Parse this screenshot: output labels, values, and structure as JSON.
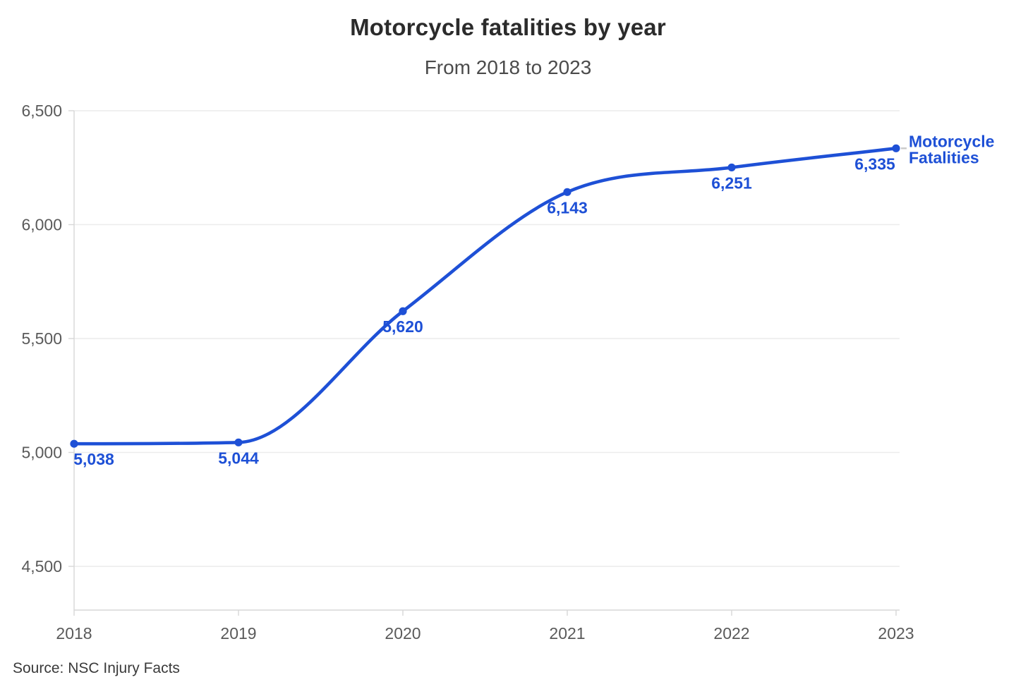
{
  "header": {
    "title": "Motorcycle fatalities by year",
    "subtitle": "From 2018 to 2023"
  },
  "footer": {
    "source": "Source: NSC Injury Facts"
  },
  "chart_data": {
    "type": "line",
    "title": "Motorcycle fatalities by year",
    "subtitle": "From 2018 to 2023",
    "x": [
      2018,
      2019,
      2020,
      2021,
      2022,
      2023
    ],
    "xtick_labels": [
      "2018",
      "2019",
      "2020",
      "2021",
      "2022",
      "2023"
    ],
    "series": [
      {
        "name": "Motorcycle Fatalities",
        "label_lines": [
          "Motorcycle",
          "Fatalities"
        ],
        "values": [
          5038,
          5044,
          5620,
          6143,
          6251,
          6335
        ],
        "data_labels": [
          "5,038",
          "5,044",
          "5,620",
          "6,143",
          "6,251",
          "6,335"
        ],
        "color": "#1e50d6"
      }
    ],
    "xlabel": "",
    "ylabel": "",
    "ylim": [
      4500,
      6500
    ],
    "yticks": [
      6500,
      6000,
      5500,
      5000,
      4500
    ],
    "ytick_labels": [
      "6,500",
      "6,000",
      "5,500",
      "5,000",
      "4,500"
    ],
    "grid": "horizontal",
    "legend_position": "end-of-line",
    "source": "Source: NSC Injury Facts",
    "colors": {
      "line": "#1e50d6",
      "marker": "#1e50d6",
      "data_label": "#1e50d6",
      "series_label": "#1e50d6",
      "grid": "#ececec",
      "axis": "#d7d7d7",
      "tick": "#d7d7d7",
      "connector": "#c9c9c9",
      "tick_label": "#5a5a5a",
      "title": "#2b2b2b",
      "subtitle": "#4b4b4b",
      "source_text": "#3a3a3a"
    }
  }
}
